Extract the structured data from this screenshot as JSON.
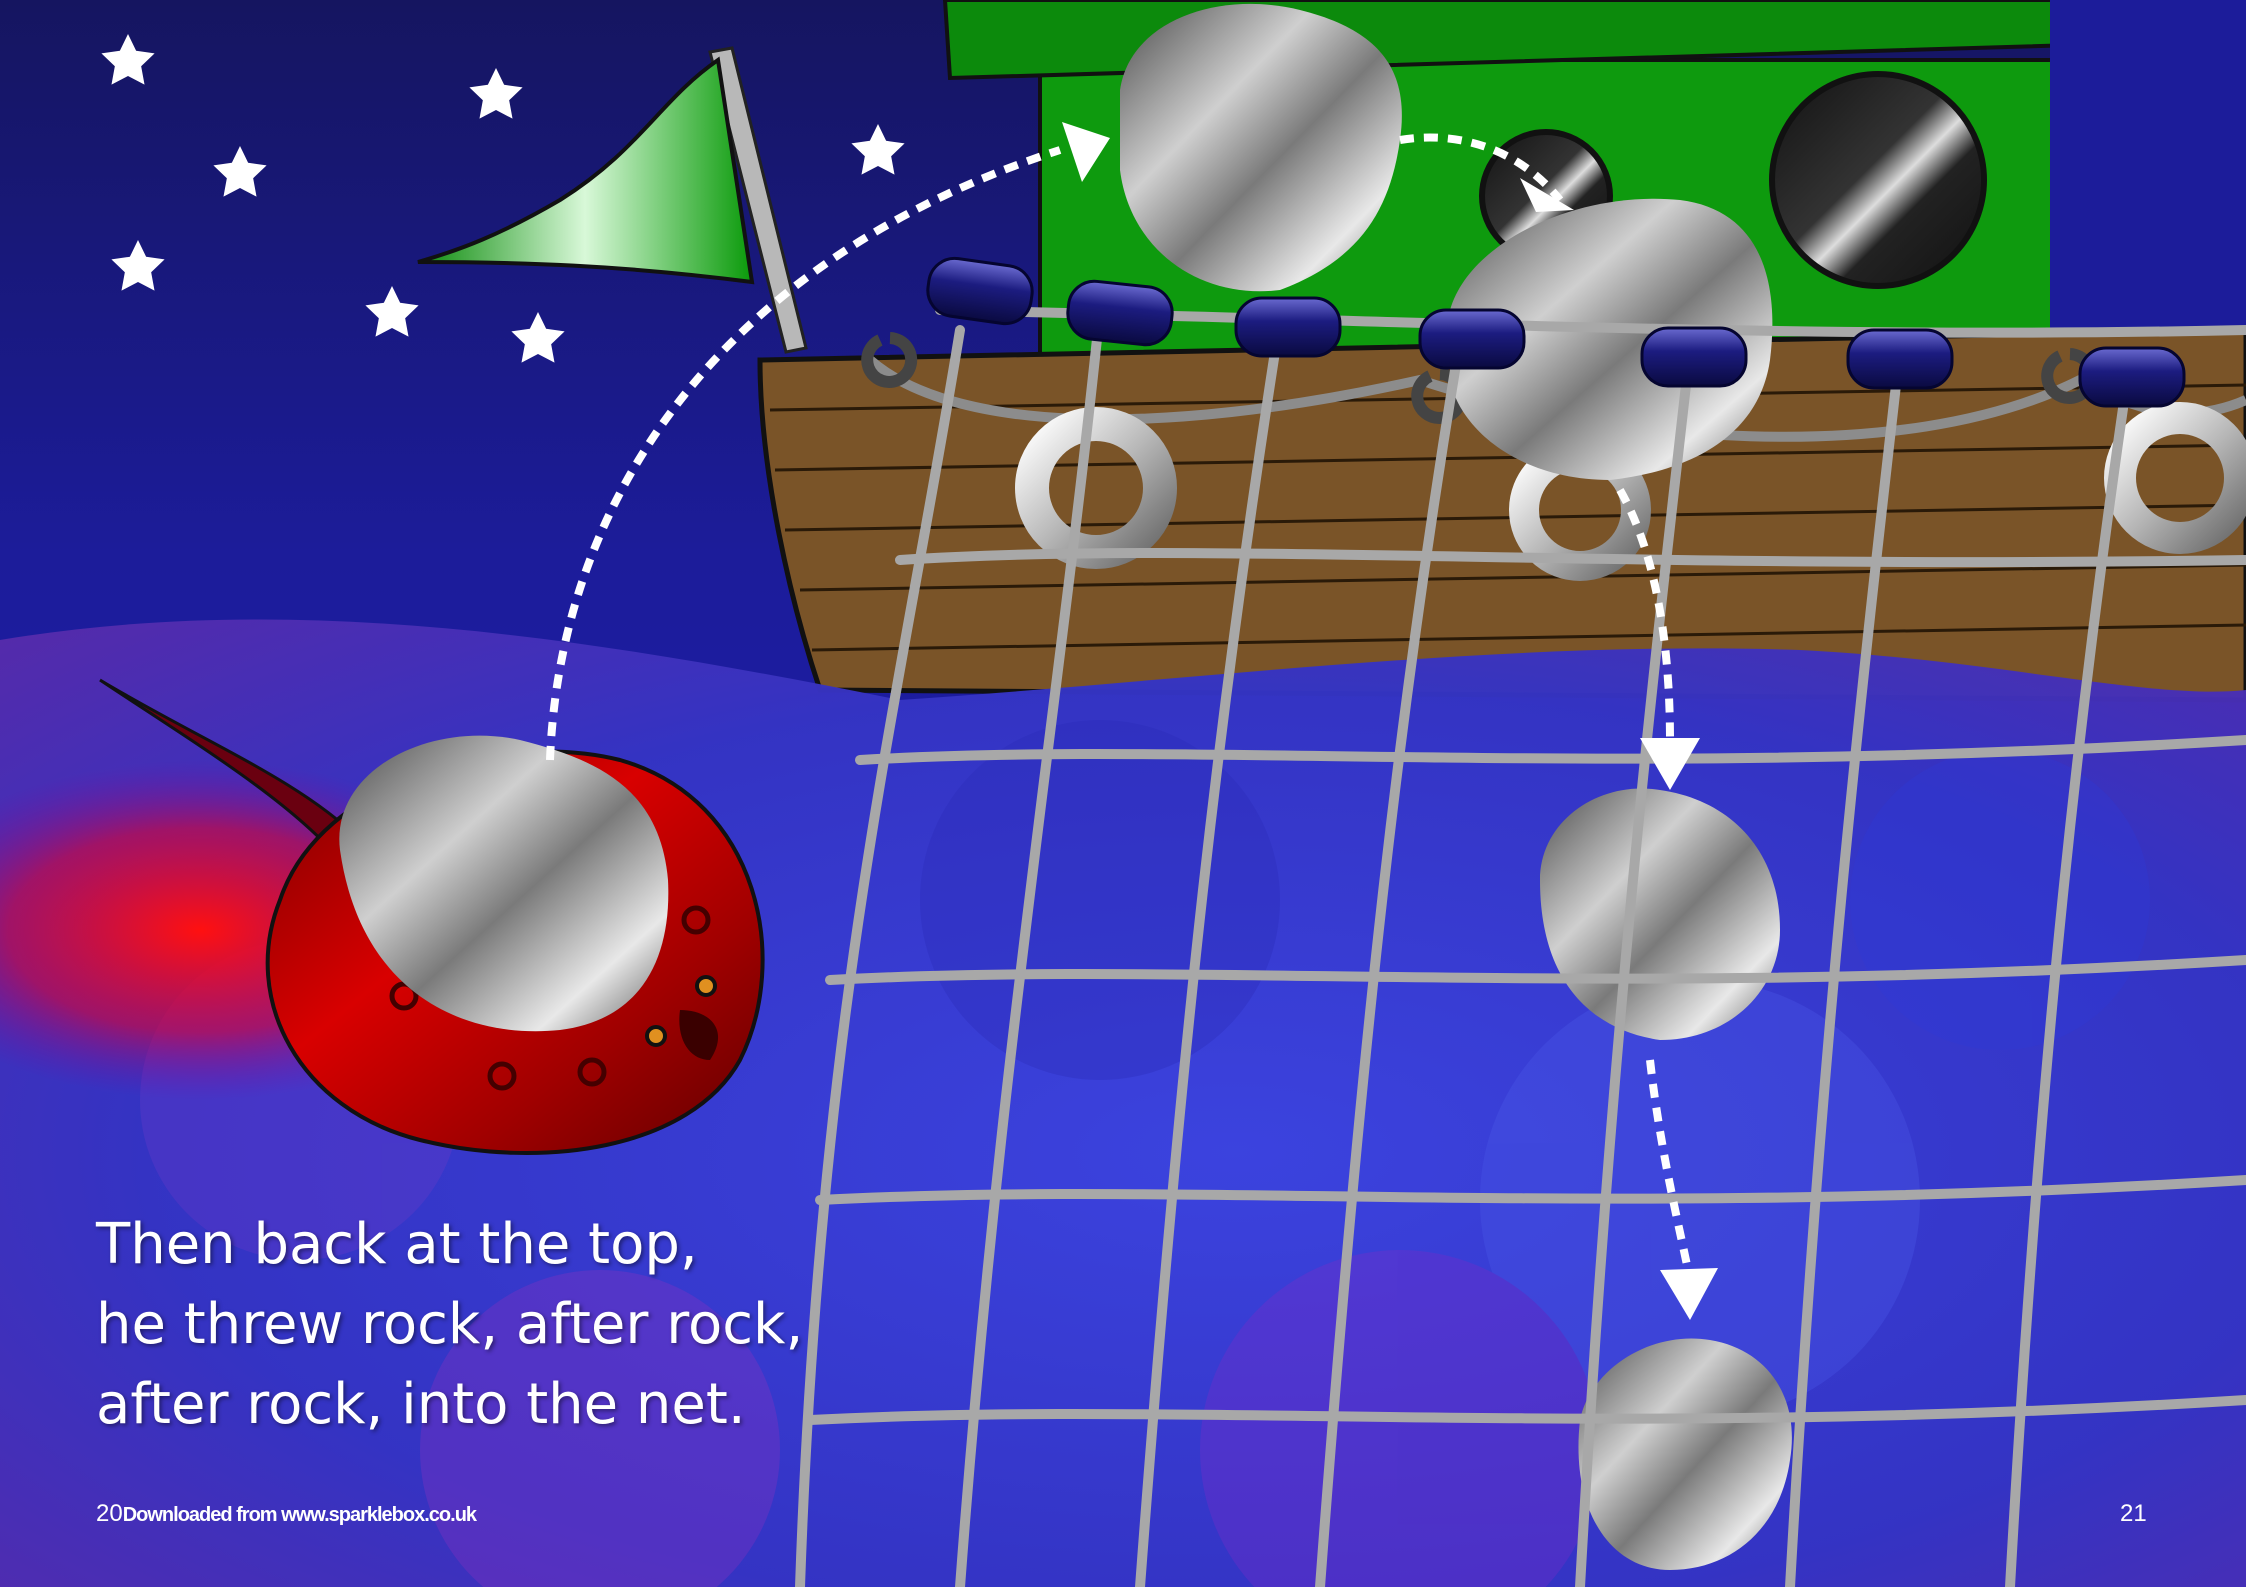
{
  "story": {
    "lines": [
      "Then back at the top,",
      "he threw rock, after rock,",
      "after rock, into the net."
    ]
  },
  "footer": {
    "left_page_number": "20",
    "credit": "Downloaded from www.sparklebox.co.uk",
    "right_page_number": "21"
  },
  "palette": {
    "sky": "#1a1a8c",
    "sea": "#3a3ad0",
    "boat_hull": "#7a5428",
    "cabin": "#0e9a0e",
    "flag": "#22b022",
    "stingray": "#c80000",
    "net": "#a8a8a8",
    "float_buoy": "#1c1c80",
    "rock": "#9a9a9a",
    "arrow": "#ffffff"
  },
  "icons": [
    "star-icon",
    "flag-icon",
    "stingray-icon",
    "rock-icon",
    "boat-icon",
    "net-icon",
    "arrow-icon",
    "life-ring-icon",
    "porthole-icon",
    "buoy-icon"
  ]
}
